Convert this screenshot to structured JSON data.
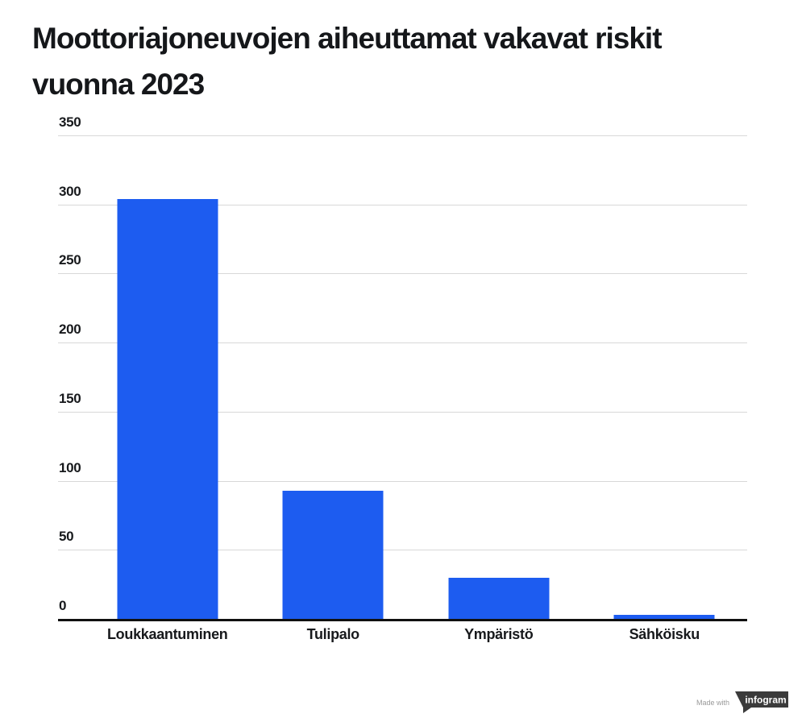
{
  "title": "Moottoriajoneuvojen aiheuttamat vakavat riskit\nvuonna 2023",
  "chart_data": {
    "type": "bar",
    "title": "Moottoriajoneuvojen aiheuttamat vakavat riskit vuonna 2023",
    "categories": [
      "Loukkaantuminen",
      "Tulipalo",
      "Ympäristö",
      "Sähköisku"
    ],
    "values": [
      304,
      93,
      30,
      3
    ],
    "xlabel": "",
    "ylabel": "",
    "ylim": [
      0,
      350
    ],
    "yticks": [
      0,
      50,
      100,
      150,
      200,
      250,
      300,
      350
    ],
    "grid": true,
    "legend_position": "none",
    "bar_color": "#1d5cf0"
  },
  "colors": {
    "bar": "#1d5cf0",
    "gridline": "#d8d8d8",
    "baseline": "#101010",
    "text": "#15171a",
    "badge_background": "#3b3b3b",
    "badge_text": "#ffffff"
  },
  "credit": {
    "made_with": "Made with",
    "brand": "infogram"
  }
}
